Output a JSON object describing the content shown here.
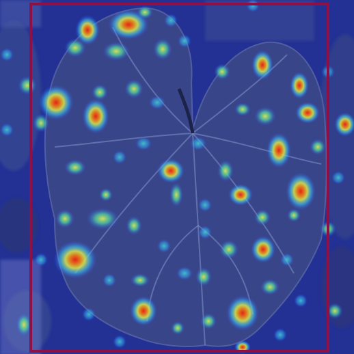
{
  "image": {
    "subject": "leaf-heatmap-overlay",
    "palette": {
      "background": "#1b2a78",
      "leaf": "#39457a",
      "leaf_vein": "#8da0c8",
      "frame": "#8e1047",
      "heat_low": "#2fd0ff",
      "heat_mid": "#f2ff3a",
      "heat_high": "#ff2a00"
    }
  }
}
